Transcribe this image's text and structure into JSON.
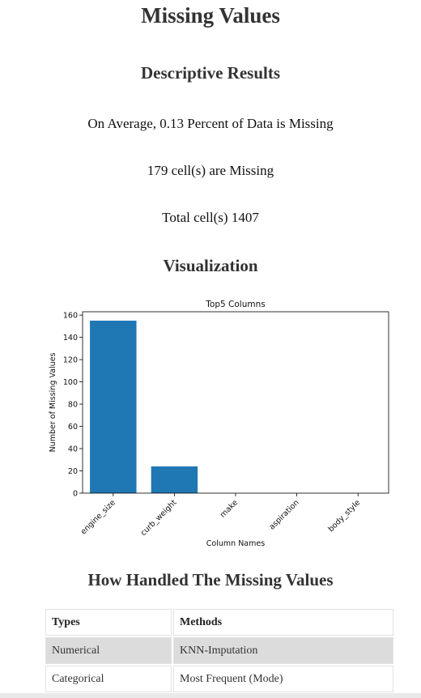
{
  "page": {
    "title": "Missing Values",
    "descriptive_heading": "Descriptive Results",
    "avg_text": "On Average, 0.13 Percent of Data is Missing",
    "missing_cells_text": "179 cell(s) are Missing",
    "total_cells_text": "Total cell(s) 1407",
    "visualization_heading": "Visualization",
    "handled_heading": "How Handled The Missing Values"
  },
  "chart_data": {
    "type": "bar",
    "title": "Top5 Columns",
    "xlabel": "Column Names",
    "ylabel": "Number of Missing Values",
    "categories": [
      "engine_size",
      "curb_weight",
      "make",
      "aspiration",
      "body_style"
    ],
    "values": [
      155,
      24,
      0,
      0,
      0
    ],
    "ylim": [
      0,
      163
    ],
    "yticks": [
      0,
      20,
      40,
      60,
      80,
      100,
      120,
      140,
      160
    ],
    "bar_color": "#1f77b4",
    "grid": false
  },
  "table": {
    "headers": [
      "Types",
      "Methods"
    ],
    "rows": [
      [
        "Numerical",
        "KNN-Imputation"
      ],
      [
        "Categorical",
        "Most Frequent (Mode)"
      ]
    ]
  }
}
